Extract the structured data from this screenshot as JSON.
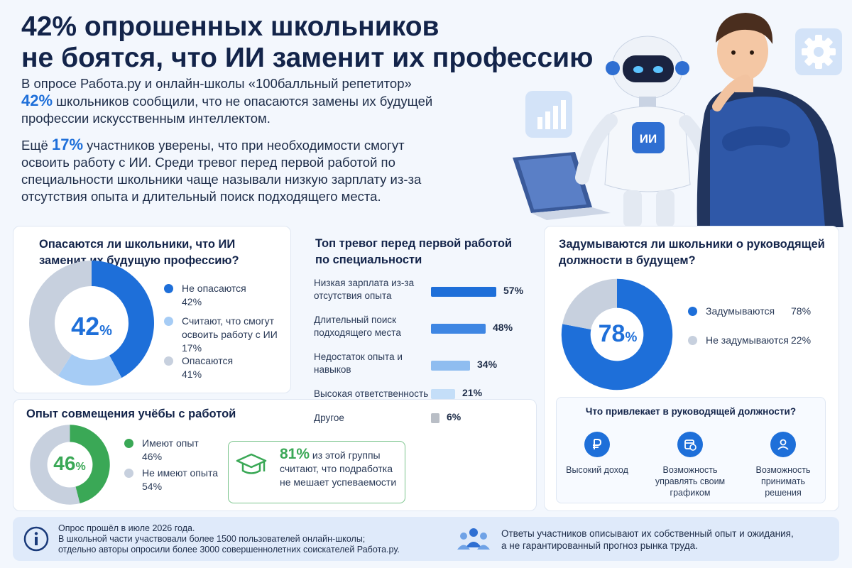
{
  "header": {
    "title_line1": "42% опрошенных школьников",
    "title_line2": "не боятся, что ИИ заменит их профессию"
  },
  "intro": {
    "p1_line1": "В опросе Работа.ру и онлайн-школы «100балльный репетитор»",
    "p1_pct": "42%",
    "p1_rest": " школьников сообщили, что не опасаются замены их будущей профессии искусственным интеллектом.",
    "p2_start": "Ещё ",
    "p2_pct": "17%",
    "p2_rest": " участников уверены, что при необходимости смогут освоить работу с ИИ. Среди тревог перед первой работой по специальности школьники чаще называли низкую зарплату из-за отсутствия опыта и длительный поиск подходящего места."
  },
  "hero": {
    "robot_badge": "ИИ"
  },
  "fear_card": {
    "title": "Опасаются ли школьники, что ИИ заменит их будущую профессию?",
    "center_value": "42",
    "center_unit": "%",
    "legend": [
      {
        "label": "Не опасаются",
        "value": "42%",
        "color": "#1e6fd9"
      },
      {
        "label": "Считают, что смогут освоить работу с ИИ",
        "value": "17%",
        "color": "#a6ccf5"
      },
      {
        "label": "Опасаются",
        "value": "41%",
        "color": "#c7d0de"
      }
    ]
  },
  "work_card": {
    "title": "Опыт совмещения учёбы с работой",
    "center_value": "46",
    "center_unit": "%",
    "legend": [
      {
        "label": "Имеют опыт",
        "value": "46%",
        "color": "#3aa856"
      },
      {
        "label": "Не имеют опыта",
        "value": "54%",
        "color": "#c7d0de"
      }
    ],
    "callout_pct": "81%",
    "callout_text1": " из этой группы",
    "callout_text2": "считают, что подработка",
    "callout_text3": "не мешает успеваемости"
  },
  "anxiety_card": {
    "title": "Топ тревог перед первой работой по специальности",
    "bars": [
      {
        "label": "Низкая зарплата из-за отсутствия опыта",
        "value": 57,
        "display": "57%",
        "color": "#1e6fd9"
      },
      {
        "label": "Длительный поиск подходящего места",
        "value": 48,
        "display": "48%",
        "color": "#3e86e3"
      },
      {
        "label": "Недостаток опыта и навыков",
        "value": 34,
        "display": "34%",
        "color": "#8fbdf0"
      },
      {
        "label": "Высокая ответственность",
        "value": 21,
        "display": "21%",
        "color": "#c4def8"
      },
      {
        "label": "Другое",
        "value": 6,
        "display": "6%",
        "color": "#b9bec6"
      }
    ]
  },
  "leader_card": {
    "title": "Задумываются ли школьники о руководящей должности в будущем?",
    "center_value": "78",
    "center_unit": "%",
    "legend": [
      {
        "label": "Задумываются",
        "value": "78%",
        "color": "#1e6fd9"
      },
      {
        "label": "Не задумываются",
        "value": "22%",
        "color": "#c7d0de"
      }
    ],
    "benefits_title": "Что привлекает в руководящей должности?",
    "benefits": [
      {
        "label": "Высокий доход",
        "icon": "ruble-icon"
      },
      {
        "label": "Возможность управлять своим графиком",
        "icon": "calendar-clock-icon"
      },
      {
        "label": "Возможность принимать решения",
        "icon": "person-check-icon"
      }
    ]
  },
  "footer": {
    "info_line1": "Опрос прошёл в июле 2026 года.",
    "info_line2": "В школьной части участвовали более 1500 пользователей онлайн-школы;",
    "info_line3": "отдельно авторы опросили более 3000 совершеннолетних соискателей Работа.ру.",
    "note_line1": "Ответы участников описывают их собственный опыт и ожидания,",
    "note_line2": "а не гарантированный прогноз рынка труда."
  },
  "chart_data": [
    {
      "type": "pie",
      "title": "Опасаются ли школьники, что ИИ заменит их будущую профессию?",
      "categories": [
        "Не опасаются",
        "Считают, что смогут освоить работу с ИИ",
        "Опасаются"
      ],
      "values": [
        42,
        17,
        41
      ]
    },
    {
      "type": "pie",
      "title": "Опыт совмещения учёбы с работой",
      "categories": [
        "Имеют опыт",
        "Не имеют опыта"
      ],
      "values": [
        46,
        54
      ]
    },
    {
      "type": "bar",
      "title": "Топ тревог перед первой работой по специальности",
      "categories": [
        "Низкая зарплата из-за отсутствия опыта",
        "Длительный поиск подходящего места",
        "Недостаток опыта и навыков",
        "Высокая ответственность",
        "Другое"
      ],
      "values": [
        57,
        48,
        34,
        21,
        6
      ]
    },
    {
      "type": "pie",
      "title": "Задумываются ли школьники о руководящей должности в будущем?",
      "categories": [
        "Задумываются",
        "Не задумываются"
      ],
      "values": [
        78,
        22
      ]
    }
  ]
}
